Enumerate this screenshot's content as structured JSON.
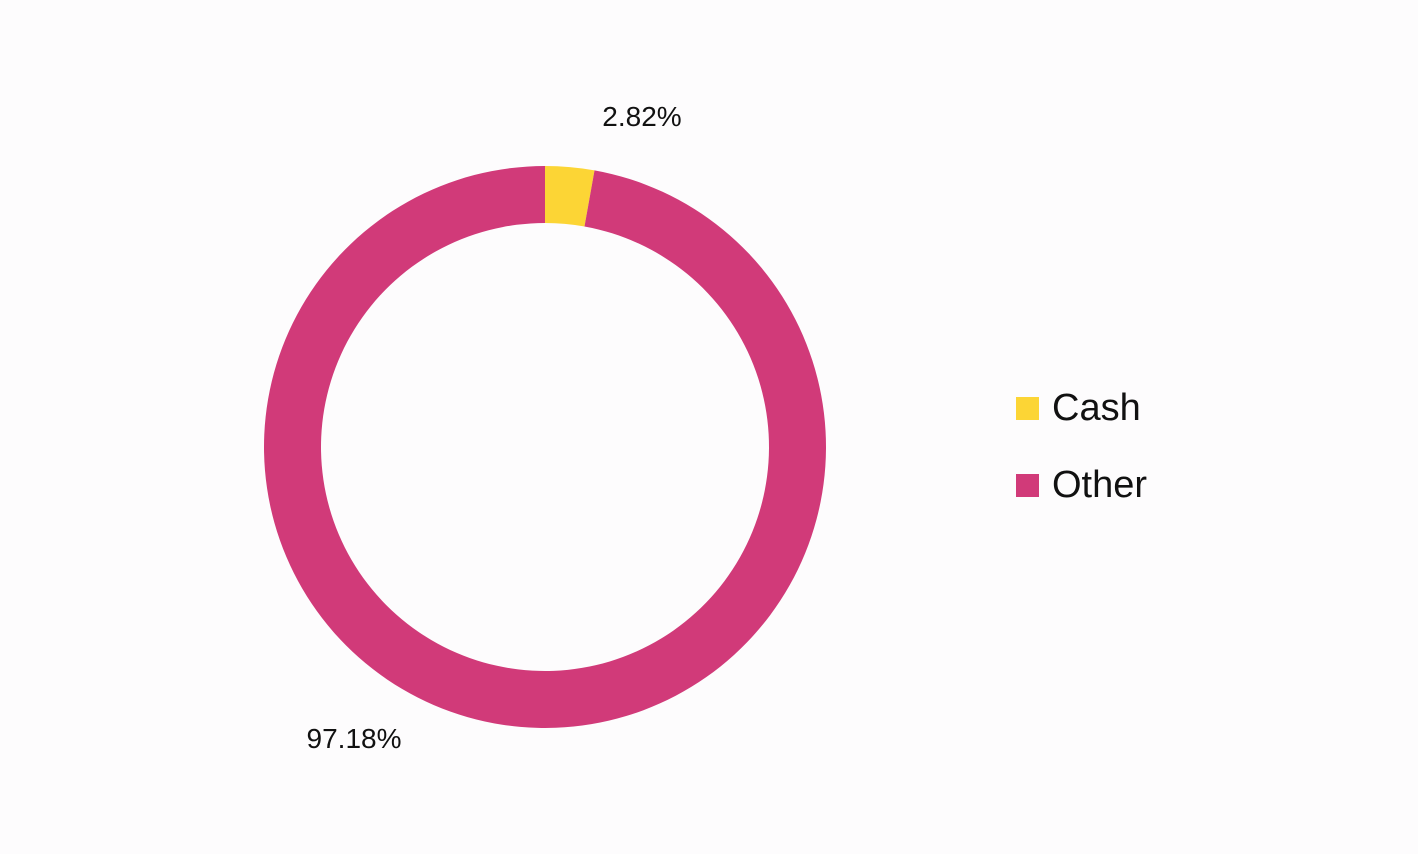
{
  "chart_data": {
    "type": "pie",
    "variant": "donut",
    "title": "",
    "categories": [
      "Cash",
      "Other"
    ],
    "values": [
      2.82,
      97.18
    ],
    "unit": "%",
    "data_labels": [
      "2.82%",
      "97.18%"
    ],
    "colors": [
      "#fcd535",
      "#d13a79"
    ],
    "start_angle": "12 o'clock",
    "direction": "clockwise",
    "legend": {
      "position": "right",
      "entries": [
        "Cash",
        "Other"
      ]
    }
  }
}
